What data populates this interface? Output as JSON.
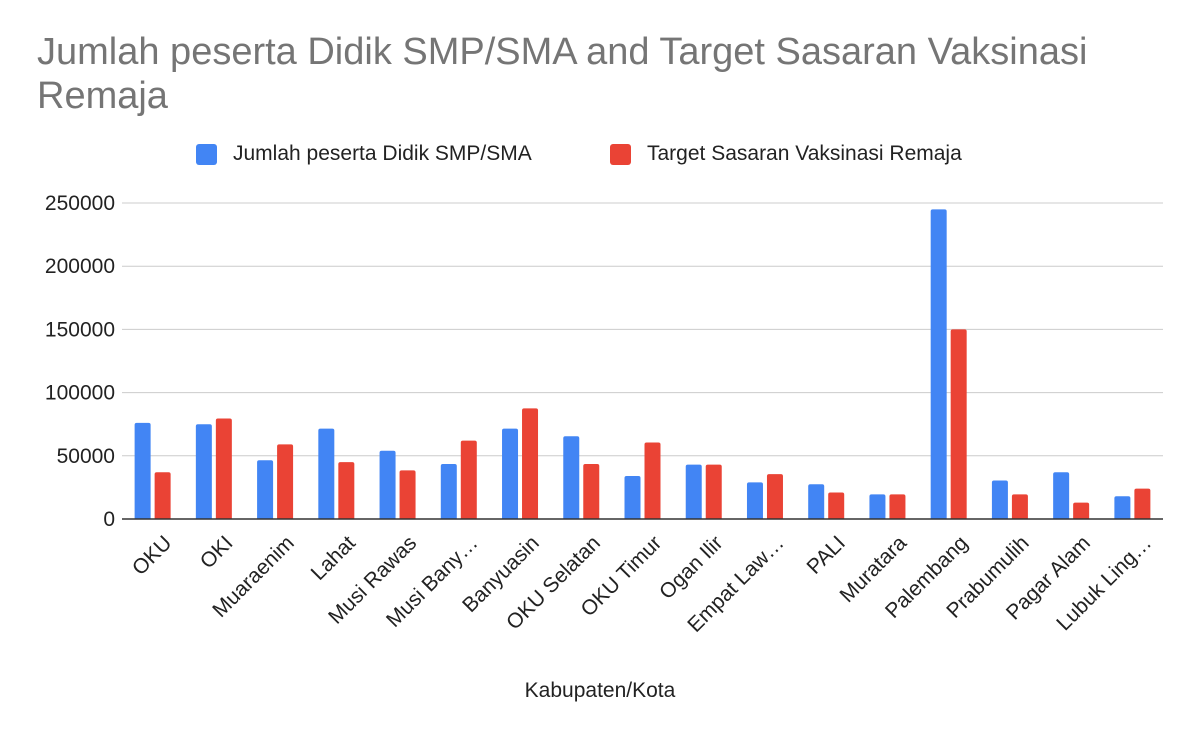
{
  "chart_data": {
    "type": "bar",
    "title": "Jumlah peserta Didik SMP/SMA and Target Sasaran Vaksinasi Remaja",
    "xlabel": "Kabupaten/Kota",
    "ylabel": "",
    "ylim": [
      0,
      250000
    ],
    "yticks": [
      0,
      50000,
      100000,
      150000,
      200000,
      250000
    ],
    "grid": true,
    "legend_position": "top",
    "categories": [
      "OKU",
      "OKI",
      "Muaraenim",
      "Lahat",
      "Musi Rawas",
      "Musi Bany…",
      "Banyuasin",
      "OKU Selatan",
      "OKU Timur",
      "Ogan Ilir",
      "Empat Law…",
      "PALI",
      "Muratara",
      "Palembang",
      "Prabumulih",
      "Pagar Alam",
      "Lubuk Ling…"
    ],
    "series": [
      {
        "name": "Jumlah peserta Didik SMP/SMA",
        "color": "#4285F4",
        "values": [
          76000,
          75000,
          46500,
          71500,
          54000,
          43500,
          71500,
          65500,
          34000,
          43000,
          29000,
          27500,
          19500,
          245000,
          30500,
          37000,
          18000
        ]
      },
      {
        "name": "Target Sasaran Vaksinasi Remaja",
        "color": "#EA4335",
        "values": [
          37000,
          79500,
          59000,
          45000,
          38500,
          62000,
          87500,
          43500,
          60500,
          43000,
          35500,
          21000,
          19500,
          150000,
          19500,
          13000,
          24000
        ]
      }
    ]
  }
}
